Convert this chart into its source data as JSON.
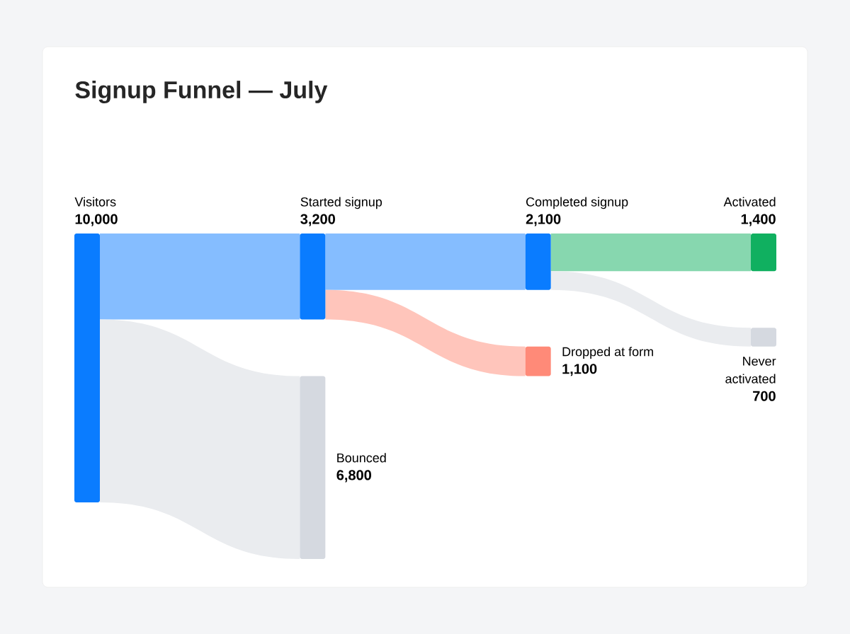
{
  "chart_data": {
    "type": "other",
    "title": "Signup Funnel — July",
    "categories": [
      "Visitors",
      "Started signup",
      "Bounced",
      "Completed signup",
      "Dropped at form",
      "Activated",
      "Never activated"
    ],
    "values": [
      10000,
      3200,
      6800,
      2100,
      1100,
      1400,
      700
    ],
    "value_labels": [
      "10,000",
      "3,200",
      "6,800",
      "2,100",
      "1,100",
      "1,400",
      "700"
    ],
    "colors": [
      "#0a7cff",
      "#0a7cff",
      "#d5d9e0",
      "#0a7cff",
      "#ff8a78",
      "#10b060",
      "#d5d9e0"
    ]
  }
}
